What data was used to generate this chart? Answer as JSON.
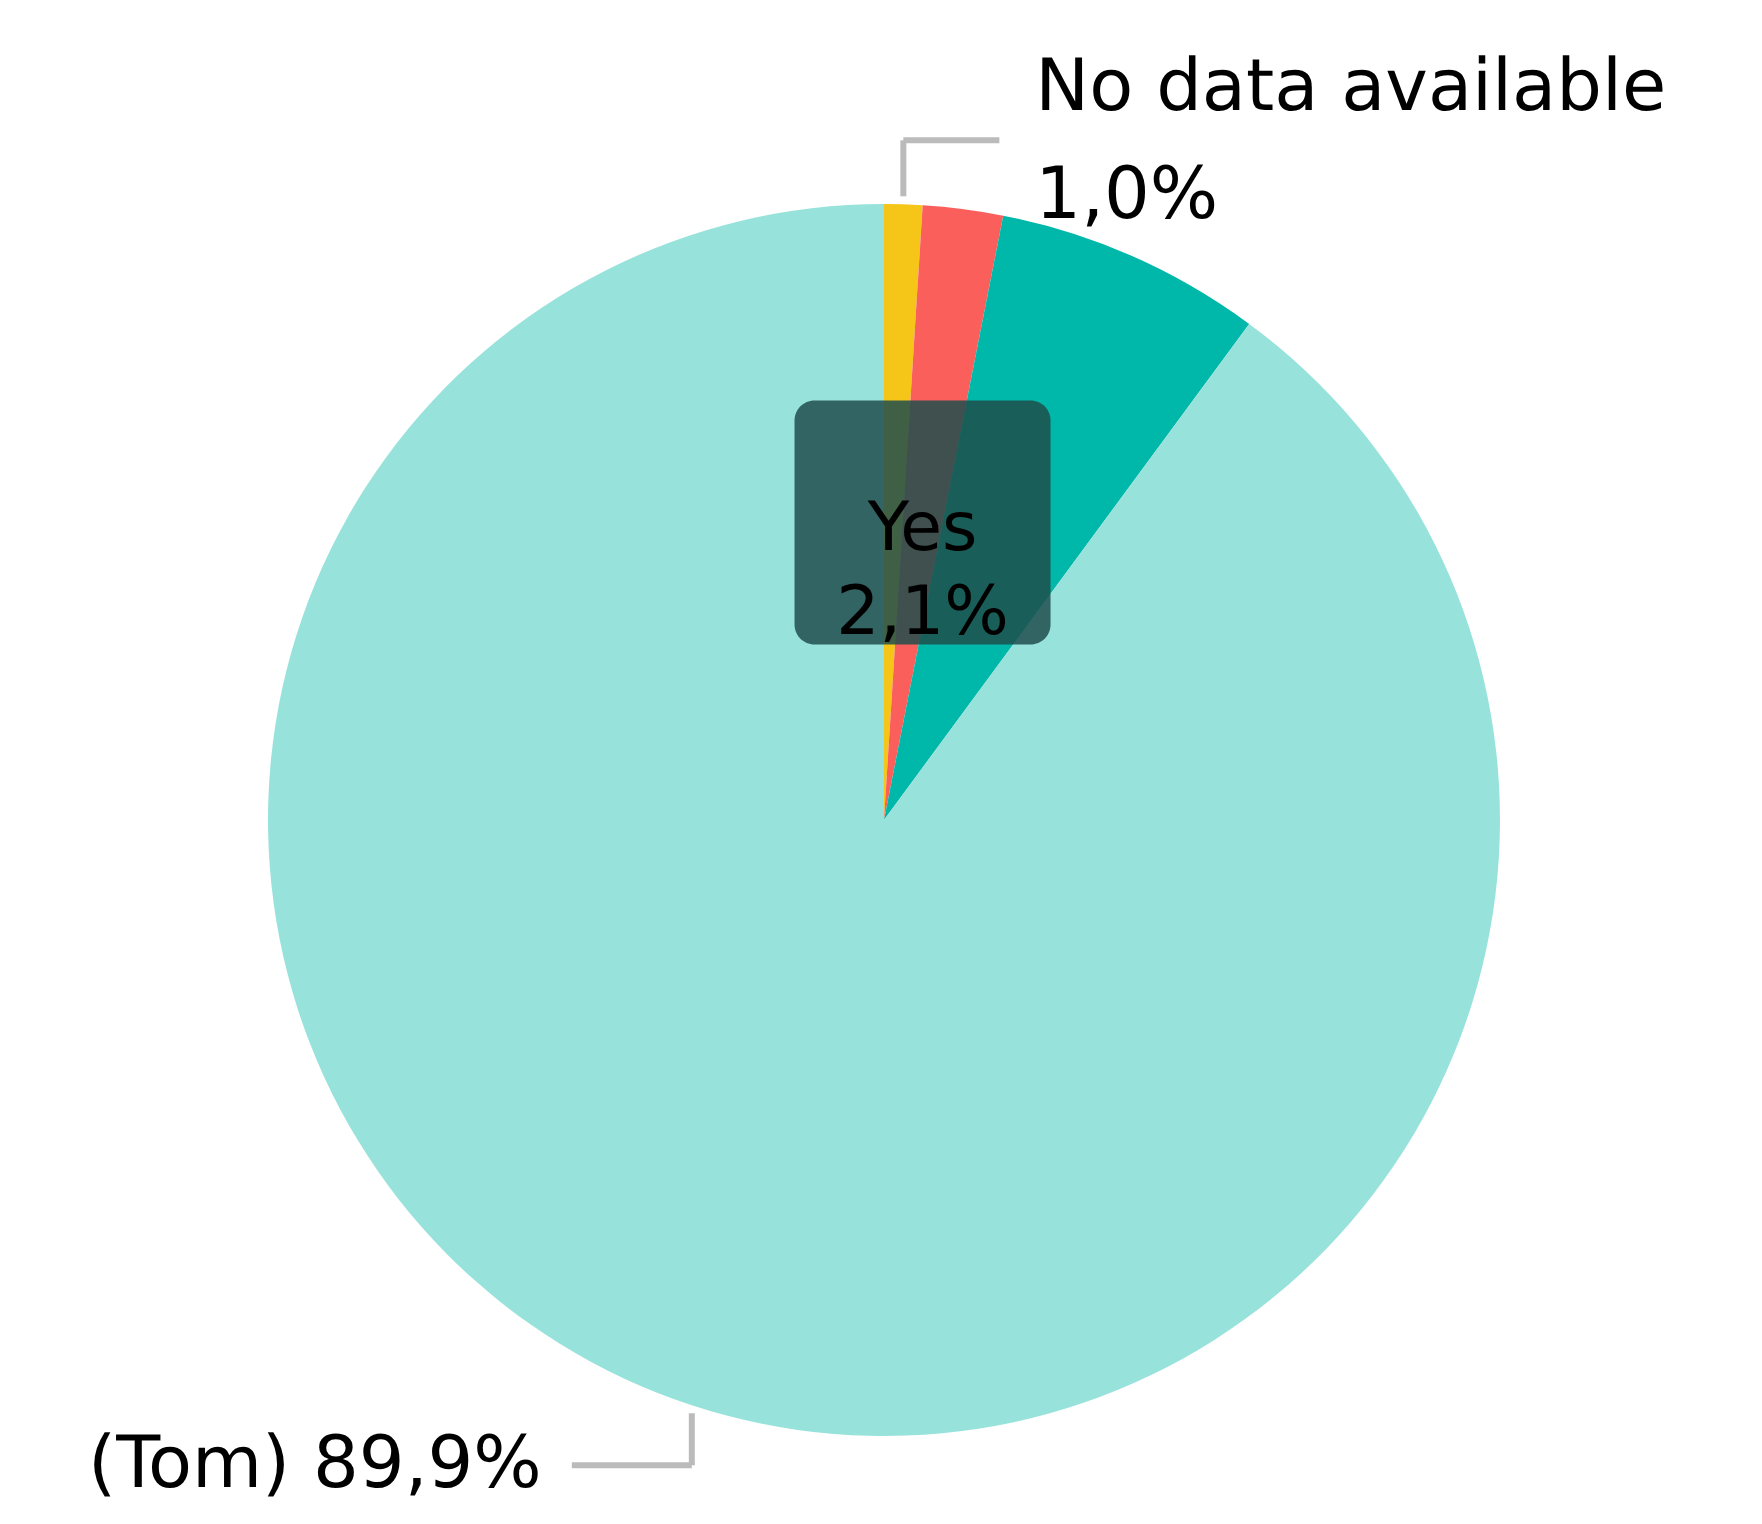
{
  "chart_data": {
    "type": "pie",
    "categories": [
      "No data available",
      "Yes",
      null,
      "(Tom)"
    ],
    "values": [
      1.0,
      2.1,
      7.0,
      89.9
    ],
    "colors": [
      "#f5c518",
      "#fa5f5b",
      "#00b8a9",
      "#98e2dc"
    ],
    "value_labels": [
      "1,0%",
      "2,1%",
      null,
      "89,9%"
    ]
  }
}
